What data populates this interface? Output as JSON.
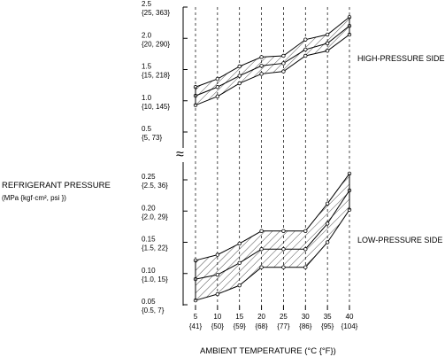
{
  "chart_data": [
    {
      "type": "area",
      "panel": "high-pressure",
      "label": "HIGH-PRESSURE SIDE",
      "ylim": [
        0.25,
        2.5
      ],
      "y_ticks": [
        {
          "value": 2.5,
          "line1": "2.5",
          "line2": "{25, 363}"
        },
        {
          "value": 2.0,
          "line1": "2.0",
          "line2": "{20, 290}"
        },
        {
          "value": 1.5,
          "line1": "1.5",
          "line2": "{15, 218}"
        },
        {
          "value": 1.0,
          "line1": "1.0",
          "line2": "{10, 145}"
        },
        {
          "value": 0.5,
          "line1": "0.5",
          "line2": "{5, 73}"
        }
      ],
      "x": [
        5,
        10,
        15,
        20,
        25,
        30,
        35,
        40
      ],
      "series": [
        {
          "values": [
            1.22,
            1.35,
            1.55,
            1.7,
            1.72,
            1.98,
            2.06,
            2.34
          ]
        },
        {
          "values": [
            1.08,
            1.22,
            1.4,
            1.56,
            1.6,
            1.82,
            1.92,
            2.2
          ]
        },
        {
          "values": [
            0.93,
            1.07,
            1.28,
            1.43,
            1.47,
            1.72,
            1.8,
            2.06
          ]
        }
      ]
    },
    {
      "type": "area",
      "panel": "low-pressure",
      "label": "LOW-PRESSURE SIDE",
      "ylim": [
        0.03,
        0.25
      ],
      "y_ticks": [
        {
          "value": 0.25,
          "line1": "0.25",
          "line2": "{2.5, 36}"
        },
        {
          "value": 0.2,
          "line1": "0.20",
          "line2": "{2.0, 29}"
        },
        {
          "value": 0.15,
          "line1": "0.15",
          "line2": "{1.5, 22}"
        },
        {
          "value": 0.1,
          "line1": "0.10",
          "line2": "{1.0, 15}"
        },
        {
          "value": 0.05,
          "line1": "0.05",
          "line2": "{0.5, 7}"
        }
      ],
      "x": [
        5,
        10,
        15,
        20,
        25,
        30,
        35,
        40
      ],
      "series": [
        {
          "values": [
            0.121,
            0.13,
            0.148,
            0.168,
            0.168,
            0.168,
            0.212,
            0.26
          ]
        },
        {
          "values": [
            0.091,
            0.098,
            0.117,
            0.139,
            0.139,
            0.139,
            0.18,
            0.233
          ]
        },
        {
          "values": [
            0.057,
            0.067,
            0.081,
            0.11,
            0.11,
            0.11,
            0.15,
            0.202
          ]
        }
      ]
    }
  ],
  "x_ticks": [
    {
      "c": "5",
      "f": "{41}"
    },
    {
      "c": "10",
      "f": "{50}"
    },
    {
      "c": "15",
      "f": "{59}"
    },
    {
      "c": "20",
      "f": "{68}"
    },
    {
      "c": "25",
      "f": "{77}"
    },
    {
      "c": "30",
      "f": "{86}"
    },
    {
      "c": "35",
      "f": "{95}"
    },
    {
      "c": "40",
      "f": "{104}"
    }
  ],
  "xlabel": "AMBIENT TEMPERATURE (°C {°F})",
  "ylabel_line1": "REFRIGERANT PRESSURE",
  "ylabel_line2": "(MPa {kgf·cm², psi })",
  "axis_break": "≈"
}
